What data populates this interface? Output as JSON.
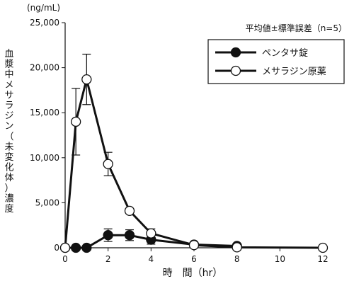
{
  "chart_data": {
    "type": "line",
    "unit_label": "(ng/mL)",
    "ylabel": "血漿中メサラジン（未変化体）濃度",
    "xlabel": "時　間（hr）",
    "stat_note": "平均値±標準誤差（n=5）",
    "xlim": [
      0,
      12
    ],
    "ylim": [
      0,
      25000
    ],
    "x_ticks": [
      0,
      2,
      4,
      6,
      8,
      10,
      12
    ],
    "x_tick_labels": [
      "0",
      "2",
      "4",
      "6",
      "8",
      "10",
      "12"
    ],
    "y_ticks": [
      0,
      5000,
      10000,
      15000,
      20000,
      25000
    ],
    "y_tick_labels": [
      "0",
      "5,000",
      "10,000",
      "15,000",
      "20,000",
      "25,000"
    ],
    "grid": false,
    "legend_position": "top-right",
    "series": [
      {
        "name": "ペンタサ錠",
        "marker": "filled-circle",
        "color": "#111111",
        "x": [
          0,
          0.5,
          1,
          2,
          3,
          4,
          6,
          8
        ],
        "y": [
          0,
          0,
          0,
          1400,
          1400,
          900,
          350,
          200
        ],
        "err": [
          0,
          0,
          0,
          700,
          600,
          500,
          150,
          100
        ]
      },
      {
        "name": "メサラジン原薬",
        "marker": "open-circle",
        "color": "#111111",
        "x": [
          0,
          0.5,
          1,
          2,
          3,
          4,
          6,
          8,
          12
        ],
        "y": [
          0,
          14000,
          18700,
          9300,
          4100,
          1600,
          300,
          50,
          0
        ],
        "err": [
          0,
          3700,
          2800,
          1300,
          0,
          500,
          0,
          0,
          0
        ]
      }
    ]
  }
}
